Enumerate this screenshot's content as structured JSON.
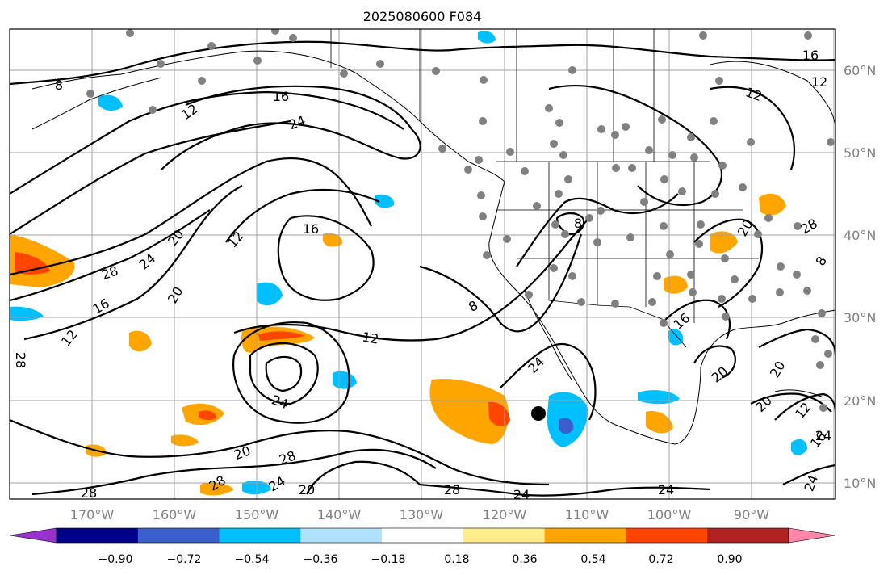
{
  "title": "2025080600 F084",
  "map": {
    "longitude_labels": [
      "170°W",
      "160°W",
      "150°W",
      "140°W",
      "130°W",
      "120°W",
      "110°W",
      "100°W",
      "90°W"
    ],
    "latitude_labels": [
      "60°N",
      "50°N",
      "40°N",
      "30°N",
      "20°N",
      "10°N"
    ],
    "contour_labels": [
      "8",
      "12",
      "16",
      "24",
      "28",
      "12",
      "24",
      "16",
      "20",
      "12",
      "28",
      "20",
      "16",
      "24",
      "12",
      "8",
      "16",
      "20",
      "12",
      "24",
      "20",
      "8",
      "16",
      "28",
      "24",
      "12",
      "16",
      "20",
      "24",
      "28",
      "28",
      "20",
      "28",
      "24",
      "20",
      "8",
      "12",
      "20",
      "24",
      "28",
      "24",
      "20",
      "16",
      "24",
      "8",
      "24",
      "16"
    ]
  },
  "colorbar": {
    "tick_labels": [
      "−0.90",
      "−0.72",
      "−0.54",
      "−0.36",
      "−0.18",
      "0.18",
      "0.36",
      "0.54",
      "0.72",
      "0.90"
    ],
    "colors": [
      "#9932cc",
      "#00008b",
      "#3a5fcd",
      "#00bfff",
      "#b0e2ff",
      "#ffffff",
      "#ffec8b",
      "#ffa500",
      "#ff4500",
      "#b22222",
      "#ff88aa"
    ]
  },
  "fill_colors": {
    "orange": "#ffa500",
    "red": "#ff4500",
    "yellow": "#ffec8b",
    "blue": "#00bfff",
    "lightblue": "#b0e2ff",
    "darkblue": "#3a5fcd",
    "purple": "#9932cc"
  }
}
